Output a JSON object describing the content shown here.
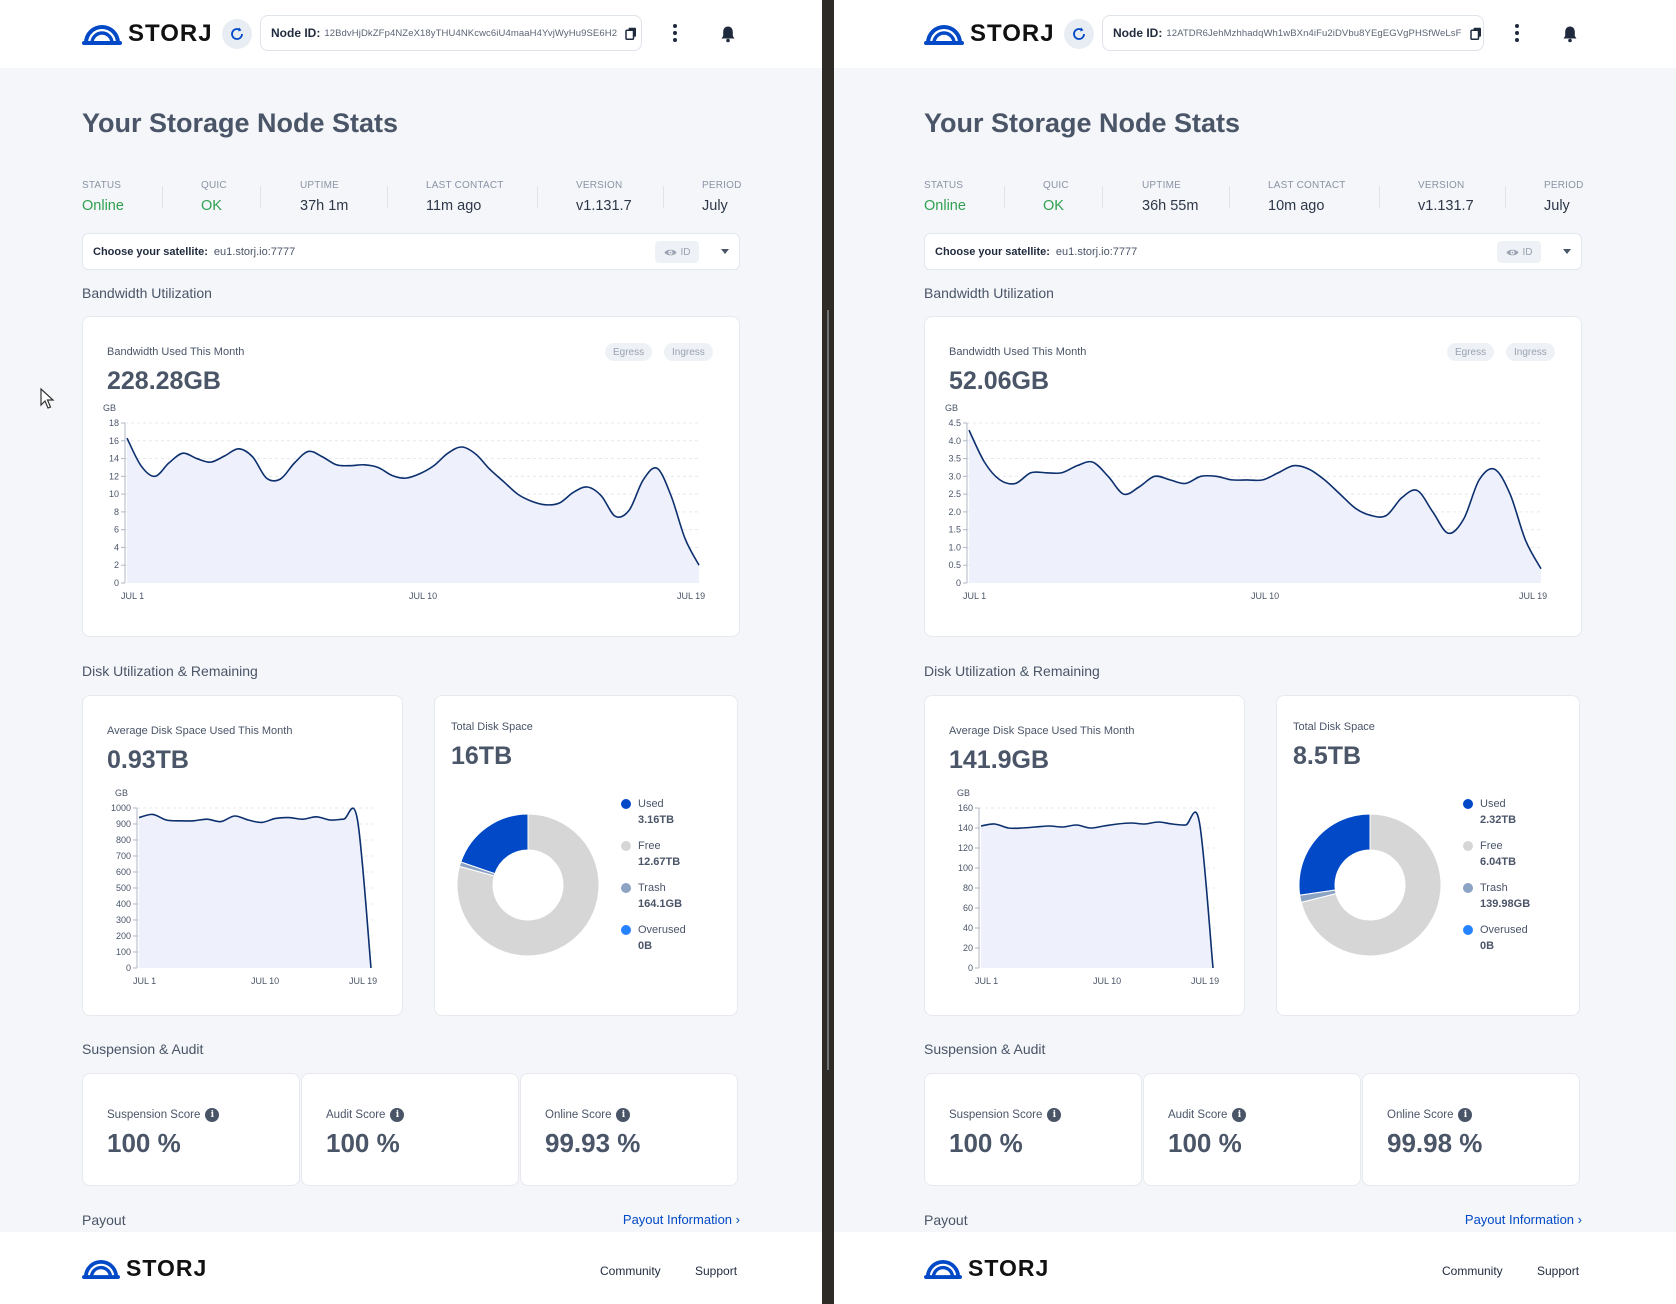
{
  "brand": "STORJ",
  "colors": {
    "accent": "#0149c6",
    "online": "#2fa150",
    "used": "#0149c6",
    "free": "#d6d6d6",
    "trash": "#8da3c4",
    "overused": "#2683ff",
    "chart_fill": "#eef1fb"
  },
  "common": {
    "node_id_label": "Node ID:",
    "page_title": "Your Storage Node Stats",
    "stat_labels": {
      "status": "STATUS",
      "quic": "QUIC",
      "uptime": "UPTIME",
      "last_contact": "LAST CONTACT",
      "version": "VERSION",
      "period": "PERIOD"
    },
    "satellite_label": "Choose your satellite:",
    "satellite_value": "eu1.storj.io:7777",
    "id_toggle": "ID",
    "bandwidth_section": "Bandwidth Utilization",
    "bandwidth_card_label": "Bandwidth Used This Month",
    "egress": "Egress",
    "ingress": "Ingress",
    "disk_section": "Disk Utilization & Remaining",
    "disk_avg_label": "Average Disk Space Used This Month",
    "total_disk_label": "Total Disk Space",
    "legend_labels": {
      "used": "Used",
      "free": "Free",
      "trash": "Trash",
      "overused": "Overused"
    },
    "suspension_section": "Suspension & Audit",
    "suspension_label": "Suspension Score",
    "audit_label": "Audit Score",
    "online_label": "Online Score",
    "payout_section": "Payout",
    "payout_link": "Payout Information",
    "footer_community": "Community",
    "footer_support": "Support",
    "icons": [
      "storj-logo-icon",
      "refresh-icon",
      "copy-icon",
      "kebab-menu-icon",
      "bell-icon",
      "eye-icon",
      "chevron-down-icon",
      "info-icon",
      "chevron-right-icon",
      "mouse-cursor-icon"
    ]
  },
  "nodes": [
    {
      "node_id": "12BdvHjDkZFp4NZeX18yTHU4NKcwc6iU4maaH4YvjWyHu9SE6H2",
      "status": "Online",
      "quic": "OK",
      "uptime": "37h 1m",
      "last_contact": "11m ago",
      "version": "v1.131.7",
      "period": "July",
      "bandwidth_total": "228.28GB",
      "disk_avg": "0.93TB",
      "total_disk": "16TB",
      "legend_values": {
        "used": "3.16TB",
        "free": "12.67TB",
        "trash": "164.1GB",
        "overused": "0B"
      },
      "scores": {
        "suspension": "100 %",
        "audit": "100 %",
        "online": "99.93 %"
      }
    },
    {
      "node_id": "12ATDR6JehMzhhadqWh1wBXn4iFu2iDVbu8YEgEGVgPHSfWeLsF",
      "status": "Online",
      "quic": "OK",
      "uptime": "36h 55m",
      "last_contact": "10m ago",
      "version": "v1.131.7",
      "period": "July",
      "bandwidth_total": "52.06GB",
      "disk_avg": "141.9GB",
      "total_disk": "8.5TB",
      "legend_values": {
        "used": "2.32TB",
        "free": "6.04TB",
        "trash": "139.98GB",
        "overused": "0B"
      },
      "scores": {
        "suspension": "100 %",
        "audit": "100 %",
        "online": "99.98 %"
      }
    }
  ],
  "chart_data": [
    {
      "type": "area",
      "node": 1,
      "name": "bandwidth",
      "ylabel": "GB",
      "ylim": [
        0,
        18
      ],
      "yticks": [
        0,
        2,
        4,
        6,
        8,
        10,
        12,
        14,
        16,
        18
      ],
      "xticks": [
        "JUL 1",
        "JUL 10",
        "JUL 19"
      ],
      "values": [
        16.3,
        13.2,
        12.0,
        13.5,
        14.6,
        14.0,
        13.6,
        14.3,
        15.1,
        14.2,
        11.8,
        11.7,
        13.5,
        14.8,
        14.2,
        13.3,
        13.2,
        13.3,
        13.0,
        12.1,
        11.8,
        12.3,
        13.2,
        14.6,
        15.3,
        14.5,
        12.8,
        11.4,
        10.0,
        9.2,
        8.8,
        9.0,
        10.2,
        10.8,
        9.8,
        7.5,
        8.2,
        11.6,
        12.9,
        9.8,
        5.0,
        2.0
      ],
      "grid": true
    },
    {
      "type": "area",
      "node": 2,
      "name": "bandwidth",
      "ylabel": "GB",
      "ylim": [
        0,
        4.5
      ],
      "yticks": [
        "0",
        "0.5",
        "1.0",
        "1.5",
        "2.0",
        "2.5",
        "3.0",
        "3.5",
        "4.0",
        "4.5"
      ],
      "xticks": [
        "JUL 1",
        "JUL 10",
        "JUL 19"
      ],
      "values": [
        4.3,
        3.4,
        2.9,
        2.8,
        3.1,
        3.1,
        3.1,
        3.3,
        3.4,
        3.0,
        2.5,
        2.7,
        3.0,
        2.9,
        2.8,
        3.0,
        3.0,
        2.9,
        2.9,
        2.9,
        3.1,
        3.3,
        3.2,
        2.9,
        2.5,
        2.1,
        1.9,
        1.9,
        2.4,
        2.6,
        2.0,
        1.4,
        1.8,
        2.9,
        3.2,
        2.5,
        1.2,
        0.4
      ],
      "grid": true
    },
    {
      "type": "area",
      "node": 1,
      "name": "disk",
      "ylabel": "GB",
      "ylim": [
        0,
        1000
      ],
      "yticks": [
        0,
        100,
        200,
        300,
        400,
        500,
        600,
        700,
        800,
        900,
        1000
      ],
      "xticks": [
        "JUL 1",
        "JUL 10",
        "JUL 19"
      ],
      "values": [
        940,
        960,
        925,
        920,
        920,
        930,
        915,
        950,
        925,
        910,
        935,
        940,
        930,
        945,
        925,
        930,
        930,
        0
      ],
      "grid": true
    },
    {
      "type": "area",
      "node": 2,
      "name": "disk",
      "ylabel": "GB",
      "ylim": [
        0,
        160
      ],
      "yticks": [
        0,
        20,
        40,
        60,
        80,
        100,
        120,
        140,
        160
      ],
      "xticks": [
        "JUL 1",
        "JUL 10",
        "JUL 19"
      ],
      "values": [
        142,
        144,
        140,
        140,
        141,
        142,
        141,
        143,
        140,
        142,
        144,
        145,
        144,
        146,
        144,
        143,
        146,
        0
      ],
      "grid": true
    },
    {
      "type": "pie",
      "node": 1,
      "name": "total-disk",
      "categories": [
        "Used",
        "Free",
        "Trash",
        "Overused"
      ],
      "values": [
        3.16,
        12.67,
        0.1641,
        0
      ]
    },
    {
      "type": "pie",
      "node": 2,
      "name": "total-disk",
      "categories": [
        "Used",
        "Free",
        "Trash",
        "Overused"
      ],
      "values": [
        2.32,
        6.04,
        0.13998,
        0
      ]
    }
  ]
}
